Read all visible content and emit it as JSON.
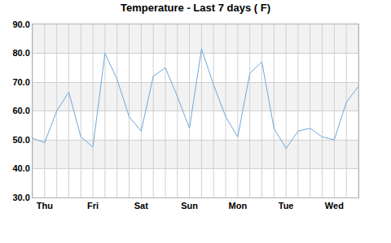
{
  "chart_data": {
    "type": "line",
    "title": "Temperature - Last 7 days ( F)",
    "categories": [
      null,
      "Thu",
      null,
      null,
      null,
      "Fri",
      null,
      null,
      null,
      "Sat",
      null,
      null,
      null,
      "Sun",
      null,
      null,
      null,
      "Mon",
      null,
      null,
      null,
      "Tue",
      null,
      null,
      null,
      "Wed",
      null,
      null
    ],
    "values": [
      50.5,
      49,
      60,
      66.5,
      51,
      47.5,
      80,
      71,
      58,
      53,
      72,
      75,
      65,
      54,
      81.5,
      69,
      58,
      51,
      73,
      77,
      54,
      47,
      53,
      54,
      51,
      50,
      63,
      68.5
    ],
    "color": "#6ea8de",
    "ylim": [
      30,
      90
    ],
    "yticks": [
      {
        "value": 30,
        "label": "30.0"
      },
      {
        "value": 40,
        "label": "40.0"
      },
      {
        "value": 50,
        "label": "50.0"
      },
      {
        "value": 60,
        "label": "60.0"
      },
      {
        "value": 70,
        "label": "70.0"
      },
      {
        "value": 80,
        "label": "80.0"
      },
      {
        "value": 90,
        "label": "90.0"
      }
    ],
    "grid": true
  }
}
